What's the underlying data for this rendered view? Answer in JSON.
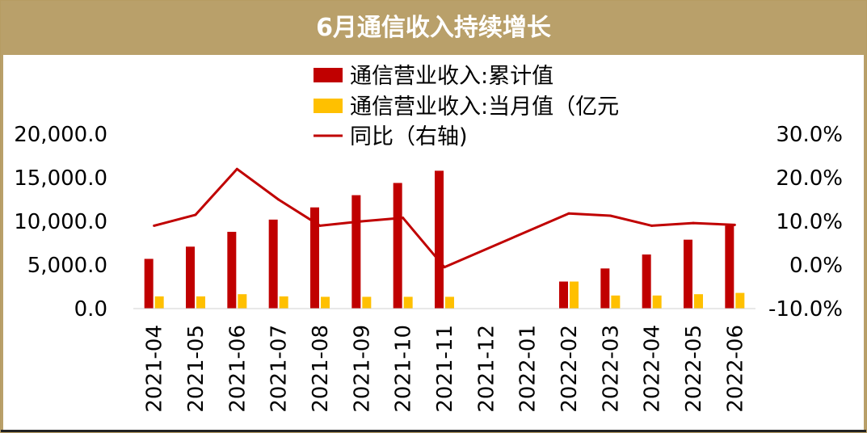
{
  "title": "6月通信收入持续增长",
  "colors": {
    "cumulative": "#c00000",
    "monthly": "#ffc000",
    "yoy": "#c00000",
    "title_bg": "#b9a06a"
  },
  "chart_data": {
    "type": "bar",
    "title": "6月通信收入持续增长",
    "categories": [
      "2021-04",
      "2021-05",
      "2021-06",
      "2021-07",
      "2021-08",
      "2021-09",
      "2021-10",
      "2021-11",
      "2021-12",
      "2022-01",
      "2022-02",
      "2022-03",
      "2022-04",
      "2022-05",
      "2022-06"
    ],
    "series": [
      {
        "name": "通信营业收入:累计值",
        "type": "bar",
        "axis": "left",
        "values": [
          5700,
          7100,
          8800,
          10200,
          11600,
          13000,
          14400,
          15800,
          null,
          null,
          3100,
          4600,
          6200,
          7900,
          9500
        ]
      },
      {
        "name": "通信营业收入:当月值（亿元",
        "type": "bar",
        "axis": "left",
        "values": [
          1400,
          1400,
          1650,
          1400,
          1350,
          1350,
          1350,
          1350,
          null,
          null,
          3100,
          1500,
          1500,
          1650,
          1800
        ]
      },
      {
        "name": "同比（右轴)",
        "type": "line",
        "axis": "right",
        "unit": "%",
        "values": [
          9.0,
          11.5,
          22.0,
          15.0,
          9.0,
          10.0,
          10.8,
          -0.5,
          null,
          null,
          11.8,
          11.3,
          9.0,
          9.6,
          9.2
        ]
      }
    ],
    "y_left": {
      "min": 0,
      "max": 20000,
      "ticks": [
        "0.0",
        "5,000.0",
        "10,000.0",
        "15,000.0",
        "20,000.0"
      ]
    },
    "y_right": {
      "min": -10,
      "max": 30,
      "ticks": [
        "-10.0%",
        "0.0%",
        "10.0%",
        "20.0%",
        "30.0%"
      ]
    },
    "grid": false,
    "legend_position": "top"
  }
}
